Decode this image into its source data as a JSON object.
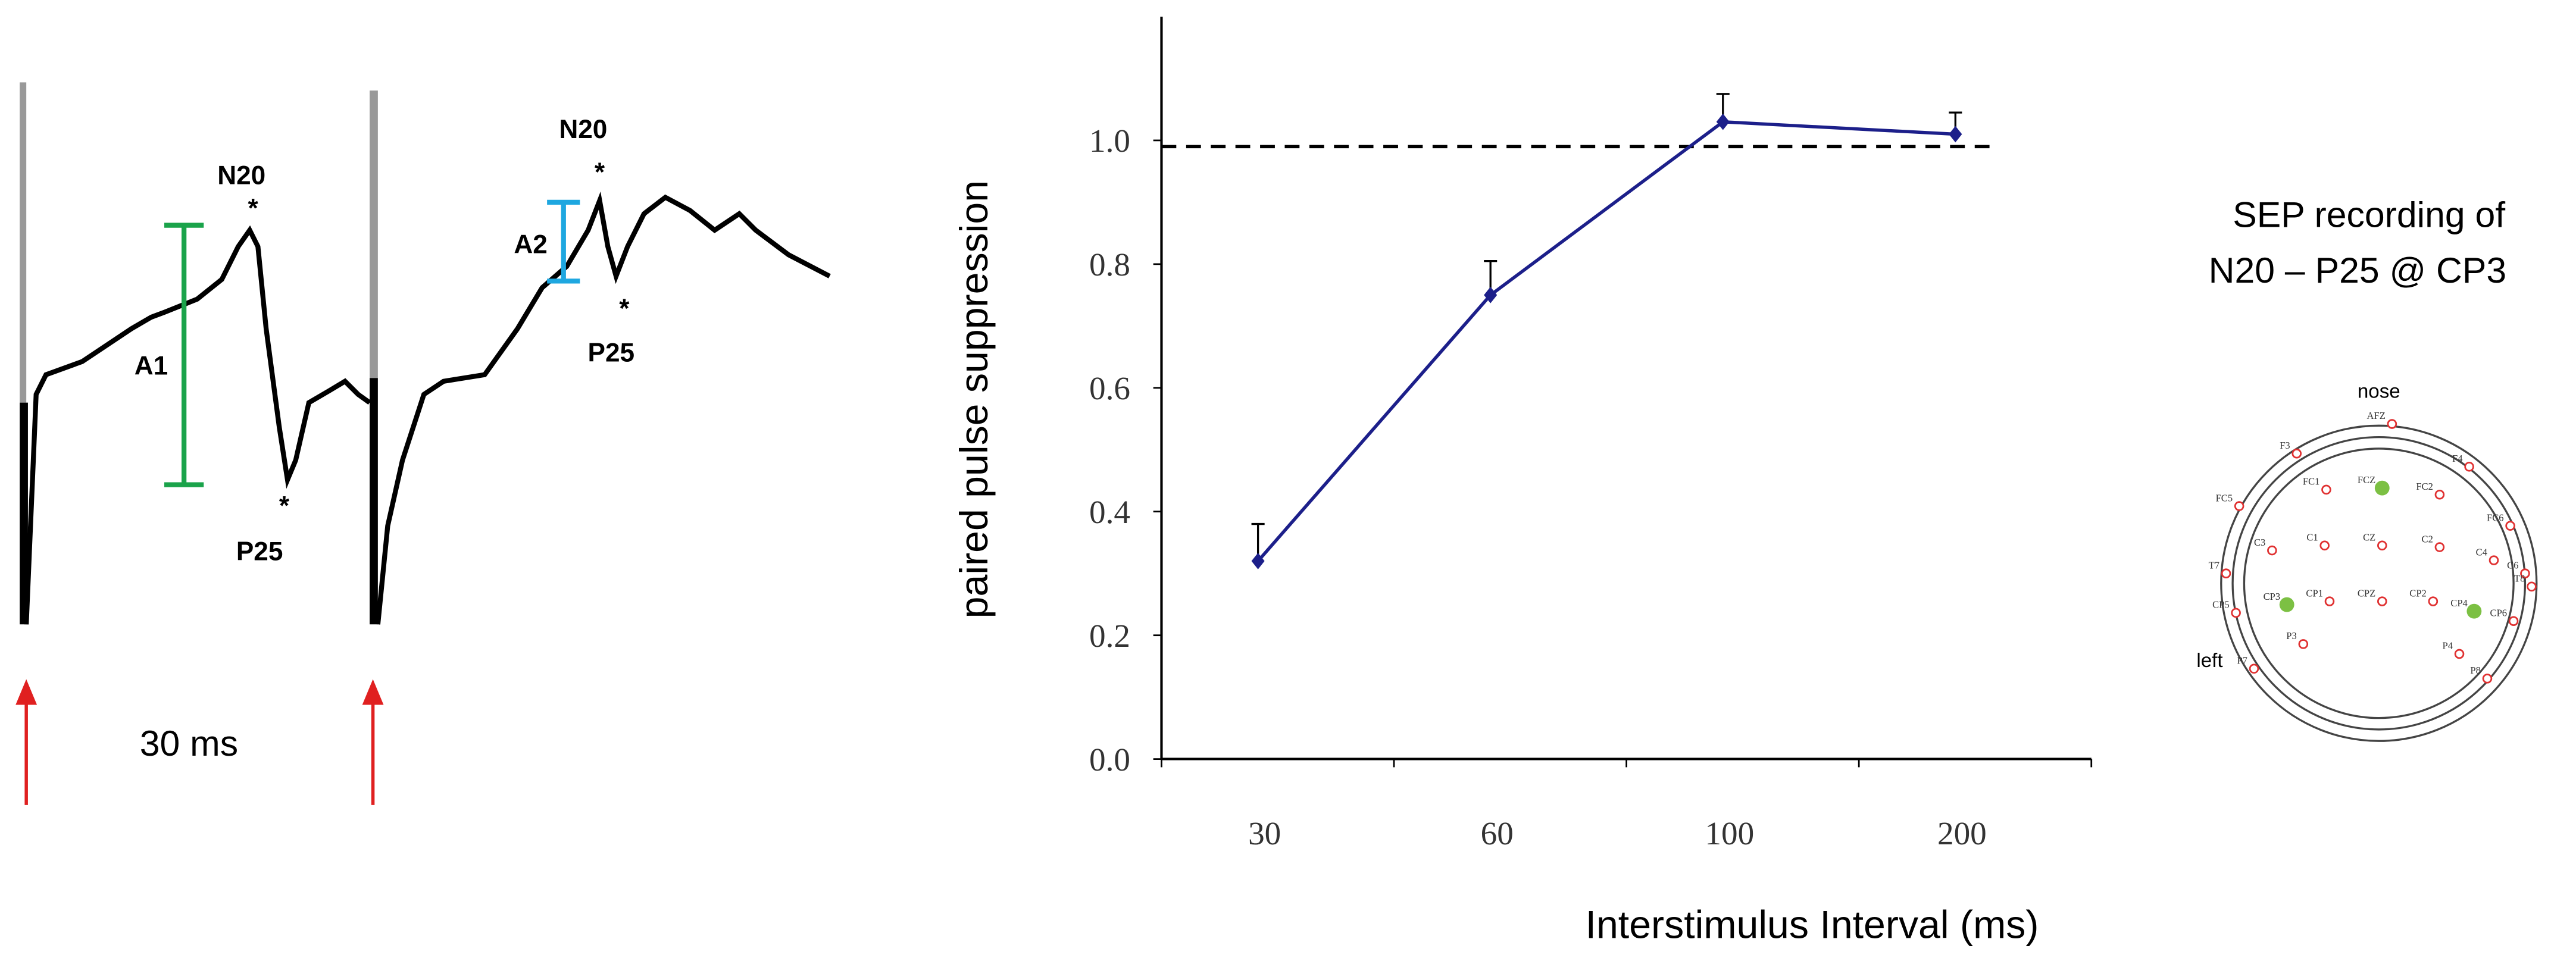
{
  "chart_data": {
    "type": "line",
    "y_label": "paired pulse suppression",
    "x_label": "Interstimulus  Interval (ms)",
    "categories": [
      "30",
      "60",
      "100",
      "200"
    ],
    "series": [
      {
        "color": "#1c1f8a",
        "values": [
          0.32,
          0.75,
          1.03,
          1.01
        ],
        "errors": [
          0.06,
          0.055,
          0.045,
          0.035
        ]
      }
    ],
    "reference_line": 0.99,
    "ylim": [
      0,
      1.2
    ],
    "yticks": [
      {
        "value": 0,
        "label": "0.0"
      },
      0.2,
      0.4,
      0.6,
      0.8,
      {
        "value": 1,
        "label": "1.0"
      }
    ]
  },
  "waveform": {
    "labels": [
      "N20",
      "P25",
      "A1",
      "N20",
      "A2",
      "P25"
    ],
    "interval": "30 ms"
  },
  "electrode_map": {
    "title": "SEP recording of",
    "subtitle": "N20 – P25   @ CP3",
    "top": "nose",
    "side": "left",
    "electrodes": [
      "AFZ",
      "F3",
      "F4",
      "FC5",
      "FC1",
      "FCZ",
      "FC2",
      "FC6",
      "C3",
      "C1",
      "CZ",
      "C2",
      "C4",
      "C6",
      "T7",
      "T8",
      "CP5",
      "CP3",
      "CP1",
      "CPZ",
      "CP2",
      "CP4",
      "CP6",
      "P3",
      "P4",
      "P7",
      "P8"
    ]
  }
}
